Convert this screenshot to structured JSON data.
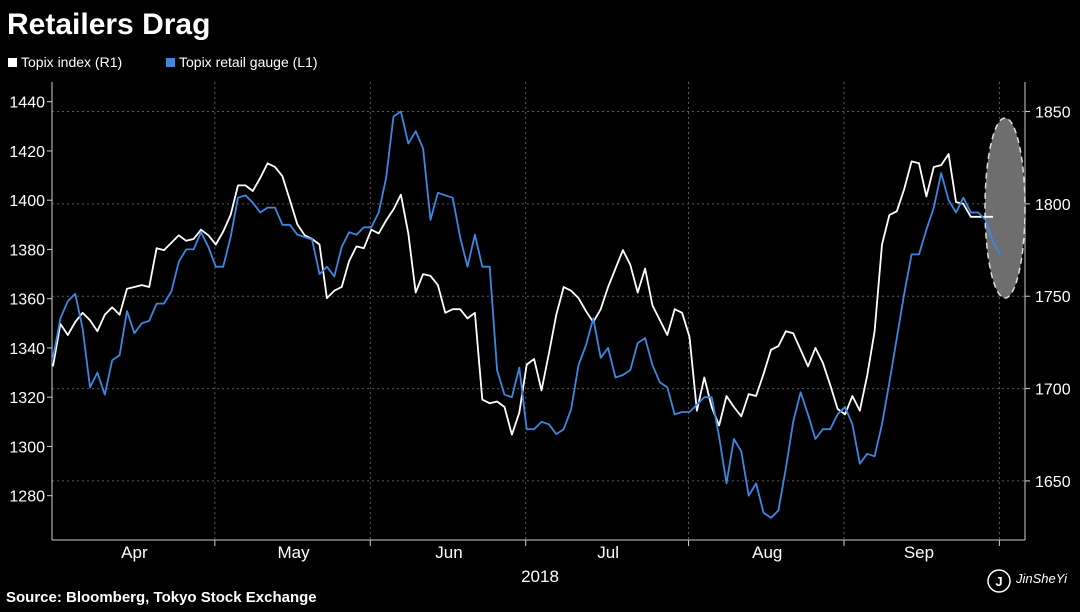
{
  "chart_data": {
    "type": "line",
    "title": "Retailers Drag",
    "xlabel": "2018",
    "source": "Source: Bloomberg, Tokyo Stock Exchange",
    "watermark": "JinSheYi",
    "x_ticks": [
      "Apr",
      "May",
      "Jun",
      "Jul",
      "Aug",
      "Sep"
    ],
    "y_left": {
      "range": [
        1262,
        1448
      ],
      "ticks": [
        1280,
        1300,
        1320,
        1340,
        1360,
        1380,
        1400,
        1420,
        1440
      ]
    },
    "y_right": {
      "range": [
        1618,
        1866
      ],
      "ticks": [
        1650,
        1700,
        1750,
        1800,
        1850
      ]
    },
    "grid": true,
    "legend_position": "top-left",
    "highlight": "dashed ellipse around the final values (late Sep)",
    "series": [
      {
        "name": "Topix index (R1)",
        "axis": "right",
        "color": "#ffffff",
        "values": [
          1712,
          1735,
          1729,
          1736,
          1741,
          1737,
          1731,
          1740,
          1744,
          1740,
          1754,
          1755,
          1756,
          1755,
          1776,
          1775,
          1779,
          1783,
          1780,
          1781,
          1786,
          1783,
          1778,
          1785,
          1794,
          1810,
          1810,
          1807,
          1814,
          1822,
          1820,
          1815,
          1802,
          1789,
          1783,
          1781,
          1778,
          1749,
          1753,
          1755,
          1769,
          1777,
          1776,
          1786,
          1784,
          1791,
          1797,
          1805,
          1784,
          1752,
          1762,
          1761,
          1756,
          1741,
          1743,
          1743,
          1738,
          1741,
          1694,
          1692,
          1693,
          1690,
          1675,
          1687,
          1713,
          1716,
          1699,
          1719,
          1740,
          1755,
          1753,
          1749,
          1742,
          1736,
          1743,
          1755,
          1765,
          1775,
          1767,
          1752,
          1765,
          1745,
          1737,
          1729,
          1743,
          1741,
          1728,
          1688,
          1706,
          1690,
          1680,
          1696,
          1690,
          1685,
          1697,
          1696,
          1708,
          1721,
          1723,
          1731,
          1730,
          1721,
          1712,
          1722,
          1714,
          1702,
          1689,
          1686,
          1696,
          1688,
          1707,
          1731,
          1778,
          1794,
          1796,
          1808,
          1823,
          1822,
          1804,
          1820,
          1821,
          1827,
          1801,
          1800,
          1793,
          1793,
          1793,
          1793
        ]
      },
      {
        "name": "Topix retail gauge (L1)",
        "axis": "left",
        "color": "#3d87e0",
        "values": [
          1336,
          1352,
          1359,
          1362,
          1348,
          1324,
          1330,
          1321,
          1335,
          1337,
          1355,
          1346,
          1350,
          1351,
          1358,
          1358,
          1363,
          1375,
          1380,
          1380,
          1387,
          1381,
          1373,
          1373,
          1385,
          1401,
          1402,
          1399,
          1395,
          1397,
          1397,
          1390,
          1390,
          1386,
          1385,
          1384,
          1370,
          1373,
          1369,
          1381,
          1387,
          1386,
          1389,
          1389,
          1395,
          1409,
          1434,
          1436,
          1423,
          1428,
          1421,
          1392,
          1403,
          1402,
          1401,
          1385,
          1373,
          1386,
          1373,
          1373,
          1331,
          1321,
          1320,
          1332,
          1307,
          1307,
          1310,
          1309,
          1305,
          1307,
          1315,
          1333,
          1341,
          1352,
          1336,
          1340,
          1328,
          1329,
          1331,
          1342,
          1344,
          1333,
          1326,
          1324,
          1313,
          1314,
          1314,
          1317,
          1320,
          1320,
          1304,
          1285,
          1303,
          1298,
          1280,
          1285,
          1273,
          1271,
          1274,
          1291,
          1310,
          1322,
          1313,
          1303,
          1307,
          1307,
          1313,
          1316,
          1309,
          1293,
          1297,
          1296,
          1309,
          1326,
          1344,
          1362,
          1378,
          1378,
          1388,
          1397,
          1411,
          1400,
          1395,
          1401,
          1395,
          1395,
          1392,
          1383,
          1378
        ]
      }
    ]
  }
}
